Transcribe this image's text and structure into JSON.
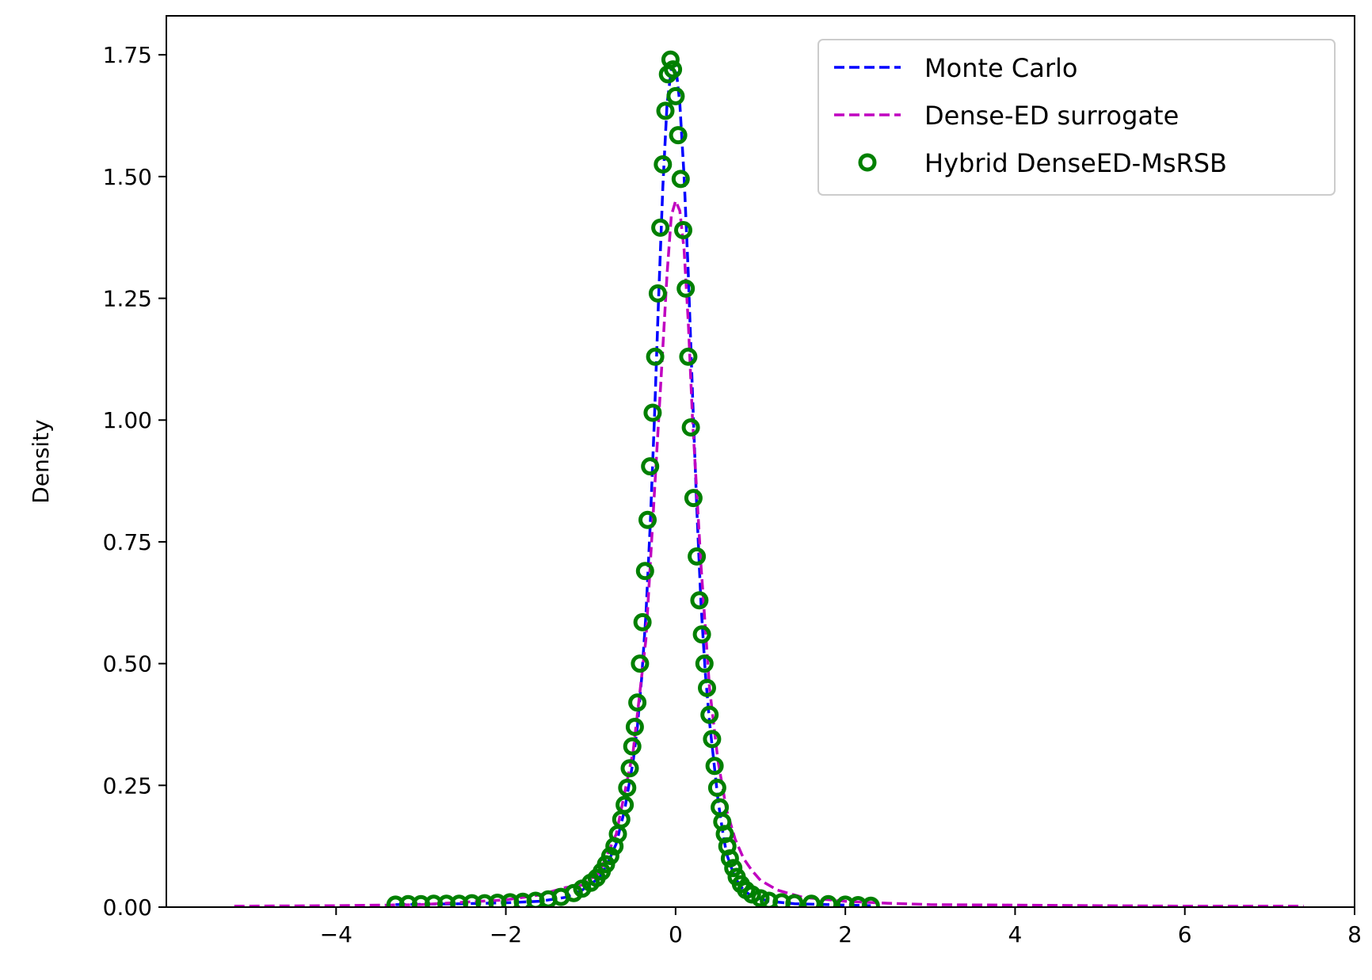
{
  "chart_data": {
    "type": "line",
    "title": "",
    "xlabel": "",
    "ylabel": "Density",
    "xlim": [
      -6.0,
      8.0
    ],
    "ylim": [
      0.0,
      1.83
    ],
    "xticks": [
      -4,
      -2,
      0,
      2,
      4,
      6,
      8
    ],
    "yticks": [
      0.0,
      0.25,
      0.5,
      0.75,
      1.0,
      1.25,
      1.5,
      1.75
    ],
    "xtick_labels": [
      "−4",
      "−2",
      "0",
      "2",
      "4",
      "6",
      "8"
    ],
    "ytick_labels": [
      "0.00",
      "0.25",
      "0.50",
      "0.75",
      "1.00",
      "1.25",
      "1.50",
      "1.75"
    ],
    "grid": false,
    "legend_position": "top-right",
    "series": [
      {
        "name": "Monte Carlo",
        "style": "dashed-line",
        "color": "#0000ff",
        "x": [
          -3.3,
          -2.5,
          -2.0,
          -1.6,
          -1.3,
          -1.1,
          -0.9,
          -0.8,
          -0.7,
          -0.6,
          -0.5,
          -0.45,
          -0.4,
          -0.35,
          -0.3,
          -0.25,
          -0.2,
          -0.15,
          -0.1,
          -0.05,
          0.0,
          0.05,
          0.1,
          0.15,
          0.2,
          0.25,
          0.3,
          0.35,
          0.4,
          0.45,
          0.5,
          0.55,
          0.6,
          0.7,
          0.8,
          0.9,
          1.1,
          1.4,
          1.8,
          2.3
        ],
        "y": [
          0.005,
          0.007,
          0.009,
          0.012,
          0.02,
          0.035,
          0.06,
          0.09,
          0.13,
          0.2,
          0.3,
          0.37,
          0.47,
          0.6,
          0.78,
          1.0,
          1.25,
          1.48,
          1.65,
          1.72,
          1.73,
          1.65,
          1.5,
          1.3,
          1.05,
          0.82,
          0.62,
          0.48,
          0.38,
          0.3,
          0.22,
          0.16,
          0.11,
          0.06,
          0.035,
          0.022,
          0.012,
          0.007,
          0.005,
          0.003
        ]
      },
      {
        "name": "Dense-ED surrogate",
        "style": "dashed-line",
        "color": "#c000c0",
        "x": [
          -5.2,
          -4.0,
          -3.0,
          -2.0,
          -1.6,
          -1.3,
          -1.1,
          -0.9,
          -0.7,
          -0.5,
          -0.35,
          -0.25,
          -0.15,
          -0.1,
          -0.05,
          0.0,
          0.05,
          0.1,
          0.15,
          0.2,
          0.3,
          0.4,
          0.5,
          0.6,
          0.7,
          0.8,
          0.9,
          1.0,
          1.2,
          1.5,
          2.0,
          2.5,
          3.0,
          4.0,
          5.0,
          6.0,
          7.4
        ],
        "y": [
          0.002,
          0.003,
          0.005,
          0.015,
          0.025,
          0.04,
          0.045,
          0.07,
          0.15,
          0.32,
          0.55,
          0.85,
          1.15,
          1.3,
          1.42,
          1.45,
          1.43,
          1.35,
          1.2,
          1.0,
          0.7,
          0.45,
          0.3,
          0.2,
          0.14,
          0.1,
          0.075,
          0.055,
          0.035,
          0.02,
          0.012,
          0.008,
          0.005,
          0.004,
          0.003,
          0.002,
          0.002
        ]
      },
      {
        "name": "Hybrid DenseED-MsRSB",
        "style": "open-circle-markers",
        "color": "#008000",
        "x": [
          -3.3,
          -3.15,
          -3.0,
          -2.85,
          -2.7,
          -2.55,
          -2.4,
          -2.25,
          -2.1,
          -1.95,
          -1.8,
          -1.65,
          -1.5,
          -1.35,
          -1.2,
          -1.1,
          -1.0,
          -0.93,
          -0.87,
          -0.82,
          -0.77,
          -0.72,
          -0.68,
          -0.64,
          -0.6,
          -0.57,
          -0.54,
          -0.51,
          -0.48,
          -0.45,
          -0.42,
          -0.39,
          -0.36,
          -0.33,
          -0.3,
          -0.27,
          -0.24,
          -0.21,
          -0.18,
          -0.15,
          -0.12,
          -0.09,
          -0.06,
          -0.03,
          0.0,
          0.03,
          0.06,
          0.09,
          0.12,
          0.15,
          0.18,
          0.21,
          0.25,
          0.28,
          0.31,
          0.34,
          0.37,
          0.4,
          0.43,
          0.46,
          0.49,
          0.52,
          0.55,
          0.58,
          0.61,
          0.64,
          0.68,
          0.72,
          0.77,
          0.83,
          0.9,
          1.0,
          1.1,
          1.25,
          1.4,
          1.6,
          1.8,
          2.0,
          2.15,
          2.3
        ],
        "y": [
          0.005,
          0.006,
          0.006,
          0.007,
          0.007,
          0.007,
          0.008,
          0.008,
          0.009,
          0.01,
          0.011,
          0.013,
          0.016,
          0.021,
          0.029,
          0.038,
          0.05,
          0.06,
          0.073,
          0.088,
          0.105,
          0.125,
          0.15,
          0.18,
          0.21,
          0.245,
          0.285,
          0.33,
          0.37,
          0.42,
          0.5,
          0.585,
          0.69,
          0.795,
          0.905,
          1.015,
          1.13,
          1.26,
          1.395,
          1.525,
          1.635,
          1.71,
          1.74,
          1.72,
          1.665,
          1.585,
          1.495,
          1.39,
          1.27,
          1.13,
          0.985,
          0.84,
          0.72,
          0.63,
          0.56,
          0.5,
          0.45,
          0.395,
          0.345,
          0.29,
          0.245,
          0.205,
          0.175,
          0.15,
          0.125,
          0.1,
          0.08,
          0.062,
          0.047,
          0.035,
          0.026,
          0.018,
          0.013,
          0.01,
          0.008,
          0.007,
          0.006,
          0.005,
          0.004,
          0.003
        ]
      }
    ]
  }
}
